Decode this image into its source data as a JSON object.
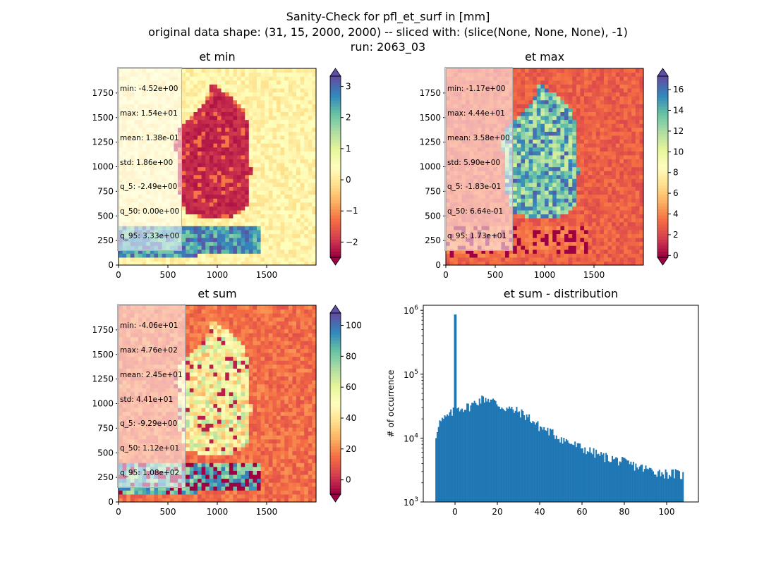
{
  "figure": {
    "title_line1": "Sanity-Check for pfl_et_surf in [mm]",
    "title_line2": "original data shape: (31, 15, 2000, 2000) -- sliced with: (slice(None, None, None), -1)",
    "title_line3": "run: 2063_03"
  },
  "colors": {
    "spectral": [
      "#9e0142",
      "#d53e4f",
      "#f46d43",
      "#fdae61",
      "#fee08b",
      "#ffffbf",
      "#e6f598",
      "#abdda4",
      "#66c2a5",
      "#3288bd",
      "#5e4fa2"
    ],
    "hist_bar": "#1f77b4"
  },
  "panels": [
    {
      "id": "et-min",
      "title": "et min",
      "stats": [
        "min: -4.52e+00",
        "max: 1.54e+01",
        "mean: 1.38e-01",
        "std: 1.86e+00",
        "q_5: -2.49e+00",
        "q_50: 0.00e+00",
        "q_95: 3.33e+00"
      ],
      "xticks": [
        "0",
        "500",
        "1000",
        "1500"
      ],
      "yticks": [
        "0",
        "250",
        "500",
        "750",
        "1000",
        "1250",
        "1500",
        "1750"
      ],
      "colorbar": {
        "vmin": -2.49,
        "vmax": 3.33,
        "ticks": [
          -2,
          -1,
          0,
          1,
          2,
          3
        ],
        "tick_labels": [
          "−2",
          "−1",
          "0",
          "1",
          "2",
          "3"
        ]
      }
    },
    {
      "id": "et-max",
      "title": "et max",
      "stats": [
        "min: -1.17e+00",
        "max: 4.44e+01",
        "mean: 3.58e+00",
        "std: 5.90e+00",
        "q_5: -1.83e-01",
        "q_50: 6.64e-01",
        "q_95: 1.73e+01"
      ],
      "xticks": [
        "0",
        "500",
        "1000",
        "1500"
      ],
      "yticks": [
        "0",
        "250",
        "500",
        "750",
        "1000",
        "1250",
        "1500",
        "1750"
      ],
      "colorbar": {
        "vmin": -0.183,
        "vmax": 17.3,
        "ticks": [
          0,
          2,
          4,
          6,
          8,
          10,
          12,
          14,
          16
        ],
        "tick_labels": [
          "0",
          "2",
          "4",
          "6",
          "8",
          "10",
          "12",
          "14",
          "16"
        ]
      }
    },
    {
      "id": "et-sum",
      "title": "et sum",
      "stats": [
        "min: -4.06e+01",
        "max: 4.76e+02",
        "mean: 2.45e+01",
        "std: 4.41e+01",
        "q_5: -9.29e+00",
        "q_50: 1.12e+01",
        "q_95: 1.08e+02"
      ],
      "xticks": [
        "0",
        "500",
        "1000",
        "1500"
      ],
      "yticks": [
        "0",
        "250",
        "500",
        "750",
        "1000",
        "1250",
        "1500",
        "1750"
      ],
      "colorbar": {
        "vmin": -9.29,
        "vmax": 108,
        "ticks": [
          0,
          20,
          40,
          60,
          80,
          100
        ],
        "tick_labels": [
          "0",
          "20",
          "40",
          "60",
          "80",
          "100"
        ]
      }
    }
  ],
  "histogram": {
    "title": "et sum - distribution",
    "ylabel": "# of occurrence",
    "xticks": [
      "0",
      "20",
      "40",
      "60",
      "80",
      "100"
    ],
    "ytick_exponents": [
      "3",
      "4",
      "5",
      "6"
    ]
  },
  "chart_data": {
    "type": "bar",
    "title": "et sum - distribution",
    "xlabel": "",
    "ylabel": "# of occurrence",
    "yscale": "log",
    "xlim": [
      -15,
      115
    ],
    "ylim": [
      1000,
      1200000
    ],
    "bin_edges_range": [
      -9.29,
      108
    ],
    "profile_x": [
      -9.3,
      -8,
      -5,
      -2,
      -0.3,
      0,
      0.3,
      2,
      5,
      8,
      10,
      12,
      14,
      16,
      18,
      20,
      22,
      25,
      28,
      30,
      32,
      35,
      38,
      40,
      45,
      50,
      55,
      60,
      65,
      70,
      75,
      80,
      85,
      90,
      95,
      100,
      104,
      108
    ],
    "profile_y": [
      9500,
      17000,
      20000,
      24000,
      27000,
      860000,
      29000,
      30000,
      30000,
      33000,
      37000,
      40000,
      42000,
      41000,
      38000,
      34000,
      31000,
      29000,
      27000,
      26000,
      24000,
      21000,
      17000,
      15000,
      12500,
      10000,
      8200,
      7000,
      6000,
      5200,
      4700,
      4200,
      3700,
      3300,
      3000,
      2800,
      2800,
      2600
    ]
  }
}
